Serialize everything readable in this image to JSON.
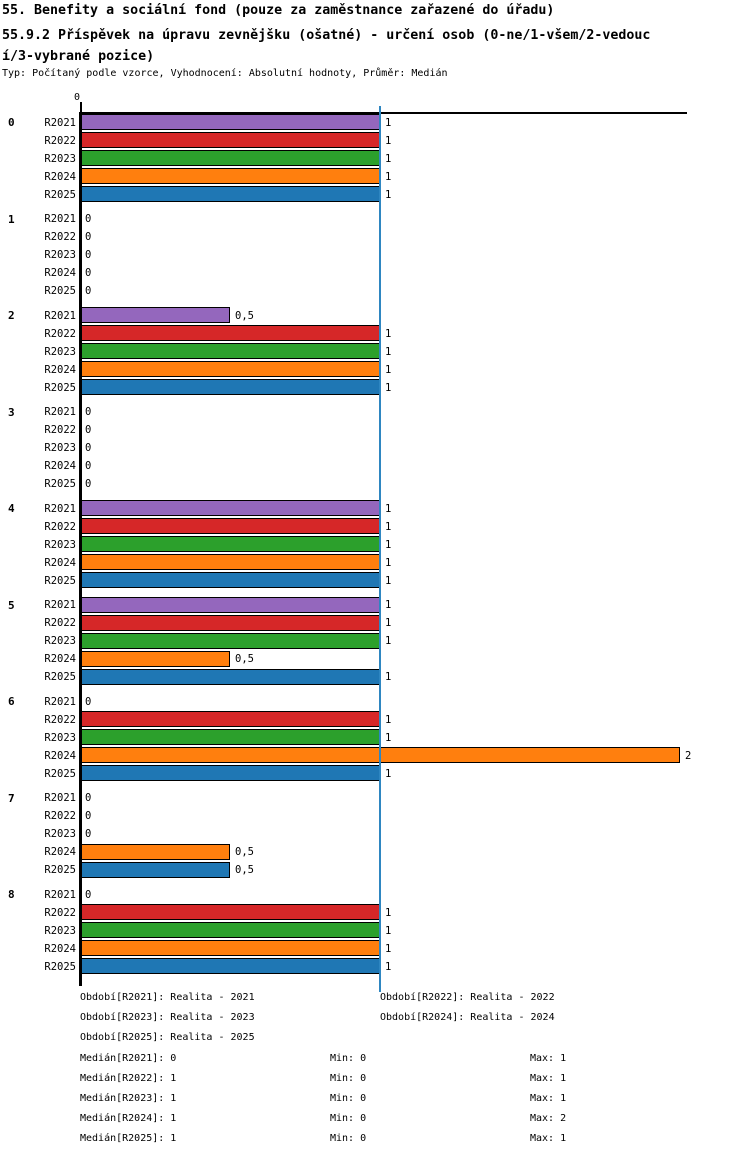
{
  "header": {
    "title": "55. Benefity a sociální fond (pouze za zaměstnance zařazené do úřadu)",
    "subtitle": "55.9.2 Příspěvek na úpravu zevnějšku (ošatné) - určení osob (0-ne/1-všem/2-vedouc\ní/3-vybrané pozice)",
    "meta": "Typ: Počítaný podle vzorce, Vyhodnocení: Absolutní hodnoty, Průměr: Medián"
  },
  "chart_data": {
    "type": "bar",
    "orientation": "horizontal",
    "title": "55.9.2 Příspěvek na úpravu zevnějšku (ošatné) - určení osob (0-ne/1-všem/2-vedoucí/3-vybrané pozice)",
    "xlim": [
      0,
      2.02
    ],
    "grid": false,
    "x_axis_ticks": [
      {
        "value": 0,
        "label": "0"
      }
    ],
    "median_line_value": 1,
    "median_line_color": "#2e86c1",
    "axis_color": "#000000",
    "years": [
      "R2021",
      "R2022",
      "R2023",
      "R2024",
      "R2025"
    ],
    "colors": [
      "#9467bd",
      "#d62728",
      "#2ca02c",
      "#ff7f0e",
      "#1f77b4"
    ],
    "groups": [
      {
        "label": "0",
        "values": [
          1,
          1,
          1,
          1,
          1
        ],
        "value_labels": [
          "1",
          "1",
          "1",
          "1",
          "1"
        ]
      },
      {
        "label": "1",
        "values": [
          0,
          0,
          0,
          0,
          0
        ],
        "value_labels": [
          "0",
          "0",
          "0",
          "0",
          "0"
        ]
      },
      {
        "label": "2",
        "values": [
          0.5,
          1,
          1,
          1,
          1
        ],
        "value_labels": [
          "0,5",
          "1",
          "1",
          "1",
          "1"
        ]
      },
      {
        "label": "3",
        "values": [
          0,
          0,
          0,
          0,
          0
        ],
        "value_labels": [
          "0",
          "0",
          "0",
          "0",
          "0"
        ]
      },
      {
        "label": "4",
        "values": [
          1,
          1,
          1,
          1,
          1
        ],
        "value_labels": [
          "1",
          "1",
          "1",
          "1",
          "1"
        ]
      },
      {
        "label": "5",
        "values": [
          1,
          1,
          1,
          0.5,
          1
        ],
        "value_labels": [
          "1",
          "1",
          "1",
          "0,5",
          "1"
        ]
      },
      {
        "label": "6",
        "values": [
          0,
          1,
          1,
          2,
          1
        ],
        "value_labels": [
          "0",
          "1",
          "1",
          "2",
          "1"
        ]
      },
      {
        "label": "7",
        "values": [
          0,
          0,
          0,
          0.5,
          0.5
        ],
        "value_labels": [
          "0",
          "0",
          "0",
          "0,5",
          "0,5"
        ]
      },
      {
        "label": "8",
        "values": [
          0,
          1,
          1,
          1,
          1
        ],
        "value_labels": [
          "0",
          "1",
          "1",
          "1",
          "1"
        ]
      }
    ],
    "stats": {
      "medians": {
        "R2021": 0,
        "R2022": 1,
        "R2023": 1,
        "R2024": 1,
        "R2025": 1
      },
      "mins": {
        "R2021": 0,
        "R2022": 0,
        "R2023": 0,
        "R2024": 0,
        "R2025": 0
      },
      "maxs": {
        "R2021": 1,
        "R2022": 1,
        "R2023": 1,
        "R2024": 2,
        "R2025": 1
      }
    }
  },
  "footer": {
    "legend": {
      "rows": [
        {
          "left": "Období[R2021]: Realita - 2021",
          "right": "Období[R2022]: Realita - 2022"
        },
        {
          "left": "Období[R2023]: Realita - 2023",
          "right": "Období[R2024]: Realita - 2024"
        },
        {
          "left": "Období[R2025]: Realita - 2025",
          "right": ""
        }
      ]
    },
    "stats_rows": [
      {
        "median": "Medián[R2021]: 0",
        "min": "Min: 0",
        "max": "Max: 1"
      },
      {
        "median": "Medián[R2022]: 1",
        "min": "Min: 0",
        "max": "Max: 1"
      },
      {
        "median": "Medián[R2023]: 1",
        "min": "Min: 0",
        "max": "Max: 1"
      },
      {
        "median": "Medián[R2024]: 1",
        "min": "Min: 0",
        "max": "Max: 2"
      },
      {
        "median": "Medián[R2025]: 1",
        "min": "Min: 0",
        "max": "Max: 1"
      }
    ]
  }
}
